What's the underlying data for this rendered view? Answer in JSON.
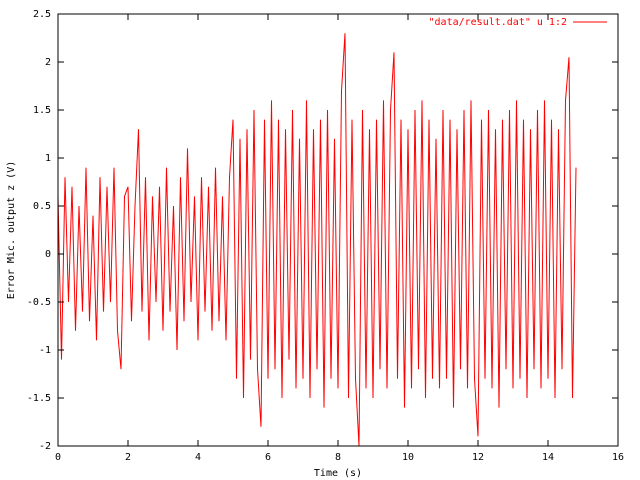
{
  "chart_data": {
    "type": "line",
    "xlabel": "Time (s)",
    "ylabel": "Error Mic. output z (V)",
    "xlim": [
      0,
      16
    ],
    "xticks": [
      0,
      2,
      4,
      6,
      8,
      10,
      12,
      14,
      16
    ],
    "ylim": [
      -2,
      2.5
    ],
    "yticks": [
      -2,
      -1.5,
      -1,
      -0.5,
      0,
      0.5,
      1,
      1.5,
      2,
      2.5
    ],
    "grid": false,
    "legend": "top-right",
    "x": [
      0,
      0.1,
      0.2,
      0.3,
      0.4,
      0.5,
      0.6,
      0.7,
      0.8,
      0.9,
      1,
      1.1,
      1.2,
      1.3,
      1.4,
      1.5,
      1.6,
      1.7,
      1.8,
      1.9,
      2,
      2.1,
      2.2,
      2.3,
      2.4,
      2.5,
      2.6,
      2.7,
      2.8,
      2.9,
      3,
      3.1,
      3.2,
      3.3,
      3.4,
      3.5,
      3.6,
      3.7,
      3.8,
      3.9,
      4,
      4.1,
      4.2,
      4.3,
      4.4,
      4.5,
      4.6,
      4.7,
      4.8,
      4.9,
      5,
      5.1,
      5.2,
      5.3,
      5.4,
      5.5,
      5.6,
      5.7,
      5.8,
      5.9,
      6,
      6.1,
      6.2,
      6.3,
      6.4,
      6.5,
      6.6,
      6.7,
      6.8,
      6.9,
      7,
      7.1,
      7.2,
      7.3,
      7.4,
      7.5,
      7.6,
      7.7,
      7.8,
      7.9,
      8,
      8.1,
      8.2,
      8.3,
      8.4,
      8.5,
      8.6,
      8.7,
      8.8,
      8.9,
      9,
      9.1,
      9.2,
      9.3,
      9.4,
      9.5,
      9.6,
      9.7,
      9.8,
      9.9,
      10,
      10.1,
      10.2,
      10.3,
      10.4,
      10.5,
      10.6,
      10.7,
      10.8,
      10.9,
      11,
      11.1,
      11.2,
      11.3,
      11.4,
      11.5,
      11.6,
      11.7,
      11.8,
      11.9,
      12,
      12.1,
      12.2,
      12.3,
      12.4,
      12.5,
      12.6,
      12.7,
      12.8,
      12.9,
      13,
      13.1,
      13.2,
      13.3,
      13.4,
      13.5,
      13.6,
      13.7,
      13.8,
      13.9,
      14,
      14.1,
      14.2,
      14.3,
      14.4,
      14.5,
      14.6,
      14.7,
      14.8
    ],
    "series": [
      {
        "name": "\"data/result.dat\" u 1:2",
        "color": "#ff0000",
        "values": [
          0.6,
          -1.1,
          0.8,
          -0.5,
          0.7,
          -0.8,
          0.5,
          -0.6,
          0.9,
          -0.7,
          0.4,
          -0.9,
          0.8,
          -0.6,
          0.7,
          -0.5,
          0.9,
          -0.8,
          -1.2,
          0.6,
          0.7,
          -0.7,
          0.5,
          1.3,
          -0.6,
          0.8,
          -0.9,
          0.6,
          -0.5,
          0.7,
          -0.8,
          0.9,
          -0.6,
          0.5,
          -1.0,
          0.8,
          -0.7,
          1.1,
          -0.5,
          0.6,
          -0.9,
          0.8,
          -0.6,
          0.7,
          -0.8,
          0.9,
          -0.7,
          0.6,
          -0.9,
          0.8,
          1.4,
          -1.3,
          1.2,
          -1.5,
          1.3,
          -1.1,
          1.5,
          -1.2,
          -1.8,
          1.4,
          -1.3,
          1.6,
          -1.2,
          1.4,
          -1.5,
          1.3,
          -1.1,
          1.5,
          -1.4,
          1.2,
          -1.3,
          1.6,
          -1.5,
          1.3,
          -1.2,
          1.4,
          -1.6,
          1.5,
          -1.3,
          1.2,
          -1.4,
          1.7,
          2.3,
          -1.5,
          1.4,
          -1.3,
          -2.0,
          1.5,
          -1.4,
          1.3,
          -1.5,
          1.4,
          -1.2,
          1.6,
          -1.4,
          1.5,
          2.1,
          -1.3,
          1.4,
          -1.6,
          1.3,
          -1.4,
          1.5,
          -1.2,
          1.6,
          -1.5,
          1.4,
          -1.3,
          1.2,
          -1.4,
          1.5,
          -1.3,
          1.4,
          -1.6,
          1.3,
          -1.2,
          1.5,
          -1.4,
          1.6,
          -1.3,
          -1.9,
          1.4,
          -1.3,
          1.5,
          -1.4,
          1.3,
          -1.6,
          1.4,
          -1.2,
          1.5,
          -1.4,
          1.6,
          -1.3,
          1.4,
          -1.5,
          1.3,
          -1.2,
          1.5,
          -1.4,
          1.6,
          -1.3,
          1.4,
          -1.5,
          1.3,
          -1.2,
          1.6,
          2.05,
          -1.5,
          0.9
        ]
      }
    ]
  }
}
